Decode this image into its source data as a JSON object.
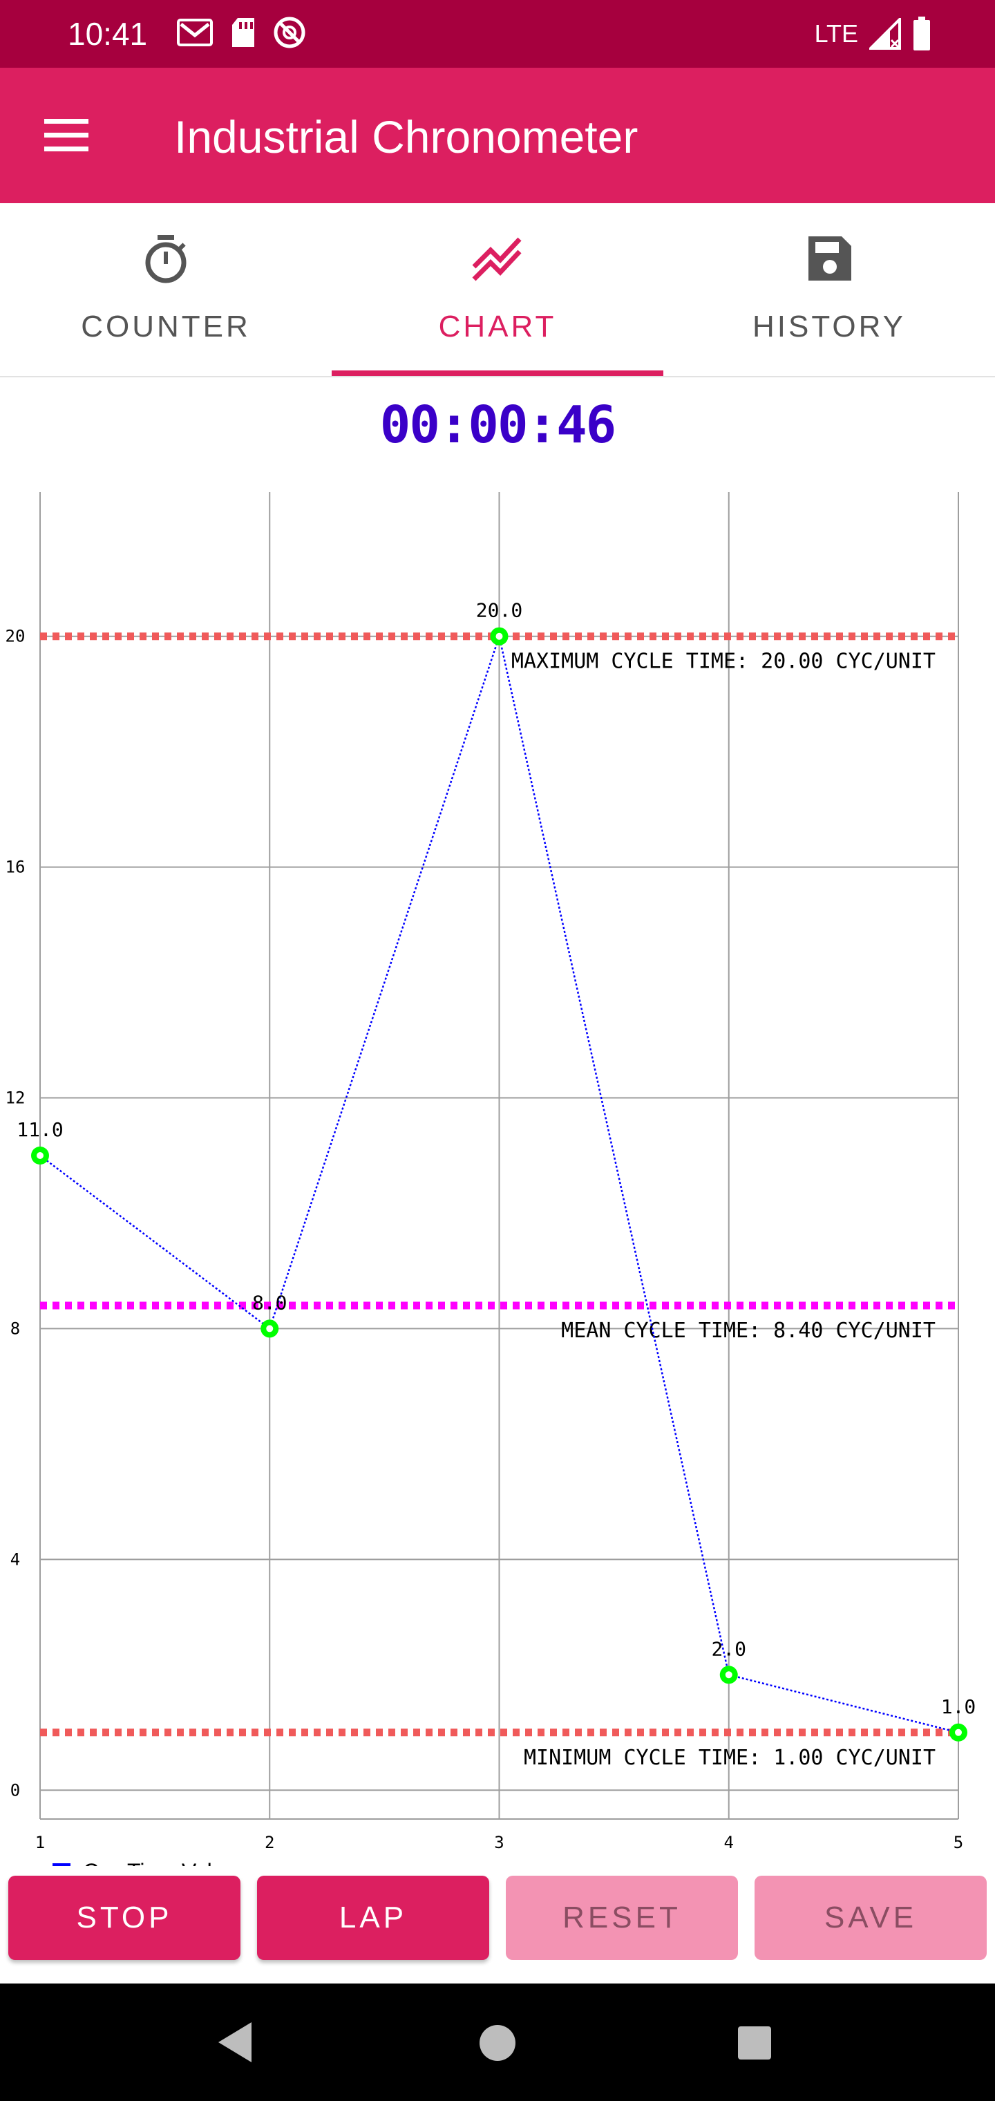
{
  "status_bar": {
    "time": "10:41",
    "network": "LTE",
    "icons_left": [
      "gmail-icon",
      "sd-card-icon",
      "sync-icon"
    ],
    "icons_right": [
      "signal-icon",
      "battery-icon"
    ]
  },
  "app_bar": {
    "title": "Industrial Chronometer",
    "menu_icon": "menu-icon",
    "color": "#dc1f60"
  },
  "tabs": [
    {
      "label": "COUNTER",
      "icon": "stopwatch-icon",
      "active": false
    },
    {
      "label": "CHART",
      "icon": "trend-chart-icon",
      "active": true
    },
    {
      "label": "HISTORY",
      "icon": "save-icon",
      "active": false
    }
  ],
  "timer": {
    "value": "00:00:46"
  },
  "chart_data": {
    "type": "line",
    "x": [
      1,
      2,
      3,
      4,
      5
    ],
    "x_tick_labels": [
      "1",
      "2",
      "3",
      "4",
      "5"
    ],
    "y_tick_labels": [
      "0",
      "4",
      "8",
      "12",
      "16",
      "20"
    ],
    "ylim": [
      -0.5,
      22.5
    ],
    "xlim": [
      1,
      5
    ],
    "series": [
      {
        "name": "Cyc.Time Value",
        "values": [
          11.0,
          8.0,
          20.0,
          2.0,
          1.0
        ],
        "labels": [
          "11.0",
          "8.0",
          "20.0",
          "2.0",
          "1.0"
        ],
        "line_color": "#0000ff",
        "point_color": "#00ff00"
      }
    ],
    "reference_lines": [
      {
        "name": "max",
        "value": 20.0,
        "label": "MAXIMUM CYCLE TIME: 20.00 CYC/UNIT",
        "color": "#f05a5a"
      },
      {
        "name": "mean",
        "value": 8.4,
        "label": "MEAN CYCLE TIME: 8.40 CYC/UNIT",
        "color": "#ff00ff"
      },
      {
        "name": "min",
        "value": 1.0,
        "label": "MINIMUM CYCLE TIME: 1.00 CYC/UNIT",
        "color": "#f05a5a"
      }
    ],
    "legend": {
      "label": "Cyc.Time Value",
      "color": "#0000ff",
      "position": "bottom-left"
    },
    "grid": true
  },
  "controls": {
    "stop": "STOP",
    "lap": "LAP",
    "reset": "RESET",
    "save": "SAVE"
  }
}
